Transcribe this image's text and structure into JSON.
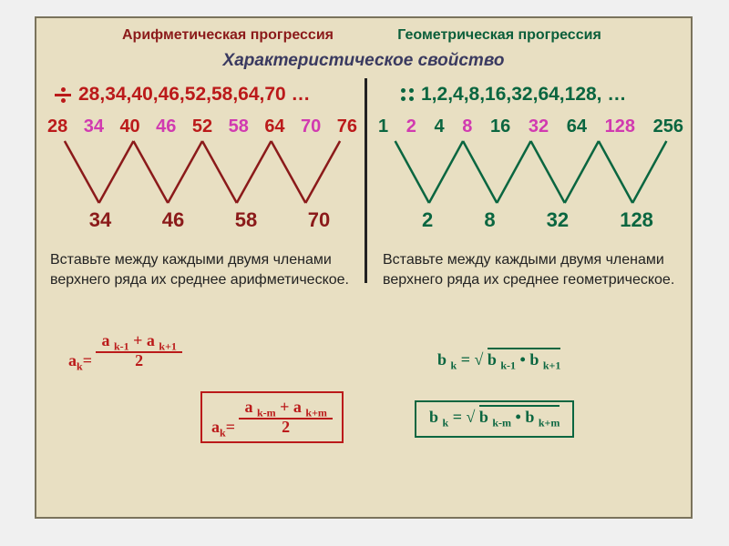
{
  "title_left": "Арифметическая прогрессия",
  "title_right": "Геометрическая прогрессия",
  "subtitle": "Характеристическое свойство",
  "arith": {
    "seq_text": "28,34,40,46,52,58,64,70 …",
    "top_nums": [
      "28",
      "34",
      "40",
      "46",
      "52",
      "58",
      "64",
      "70",
      "76"
    ],
    "top_colors": [
      "#bb1a1a",
      "#d13ab0",
      "#bb1a1a",
      "#d13ab0",
      "#bb1a1a",
      "#d13ab0",
      "#bb1a1a",
      "#d13ab0",
      "#bb1a1a"
    ],
    "bot_nums": [
      "34",
      "46",
      "58",
      "70"
    ],
    "bot_color": "#8b1a1a",
    "instr": "Вставьте между каждыми двумя членами верхнего ряда их среднее арифметическое.",
    "formula1_num": "a ",
    "formula1_sub1": "k-1",
    "formula1_plus": "+ a ",
    "formula1_sub2": "k+1",
    "formula1_den": "2",
    "formula1_lhs": "a",
    "formula1_lhs_sub": "k",
    "formula2_num": "a ",
    "formula2_sub1": "k-m",
    "formula2_plus": "+ a ",
    "formula2_sub2": "k+m",
    "formula2_den": "2",
    "line_color": "#8b1a1a",
    "line_width": 2.5
  },
  "geom": {
    "seq_text": "1,2,4,8,16,32,64,128, …",
    "top_nums": [
      "1",
      "2",
      "4",
      "8",
      "16",
      "32",
      "64",
      "128",
      "256"
    ],
    "top_colors": [
      "#0a6640",
      "#d13ab0",
      "#0a6640",
      "#d13ab0",
      "#0a6640",
      "#d13ab0",
      "#0a6640",
      "#d13ab0",
      "#0a6640"
    ],
    "bot_nums": [
      "2",
      "8",
      "32",
      "128"
    ],
    "bot_color": "#0a6640",
    "instr": "Вставьте между каждыми двумя членами верхнего ряда их среднее геометрическое.",
    "formula1_lhs": "b ",
    "formula1_lhs_sub": "k",
    "formula1_eq": " = √ ",
    "formula1_rad": "b ",
    "formula1_sub1": "k-1",
    "formula1_dot": " • b ",
    "formula1_sub2": "k+1",
    "formula2_rad": "b ",
    "formula2_sub1": "k-m",
    "formula2_dot": " • b ",
    "formula2_sub2": "k+m",
    "line_color": "#0a6640",
    "line_width": 2.5
  },
  "colors": {
    "bg": "#e8dfc2",
    "red": "#bb1a1a",
    "dark_red": "#8b1a1a",
    "green": "#0a6640",
    "pink": "#d13ab0",
    "text": "#222222"
  }
}
